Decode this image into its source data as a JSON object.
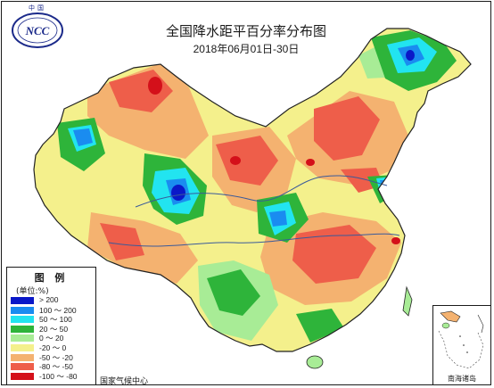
{
  "header": {
    "logo_text": "中国",
    "title": "全国降水距平百分率分布图",
    "subtitle": "2018年06月01日-30日"
  },
  "legend": {
    "title": "图 例",
    "unit": "(单位:%)",
    "items": [
      {
        "label": "> 200",
        "color": "#0a18c8"
      },
      {
        "label": "100 ～ 200",
        "color": "#1a8cf0"
      },
      {
        "label": "50 ～ 100",
        "color": "#22e4f0"
      },
      {
        "label": "20 ～ 50",
        "color": "#2eb43a"
      },
      {
        "label": "0 ～ 20",
        "color": "#a8ec96"
      },
      {
        "label": "-20 ～ 0",
        "color": "#f4f08c"
      },
      {
        "label": "-50 ～ -20",
        "color": "#f4b270"
      },
      {
        "label": "-80 ～ -50",
        "color": "#ee5e4a"
      },
      {
        "label": "-100 ～ -80",
        "color": "#d4101a"
      }
    ]
  },
  "credit": "国家气候中心",
  "inset": {
    "label": "南海诸岛"
  }
}
